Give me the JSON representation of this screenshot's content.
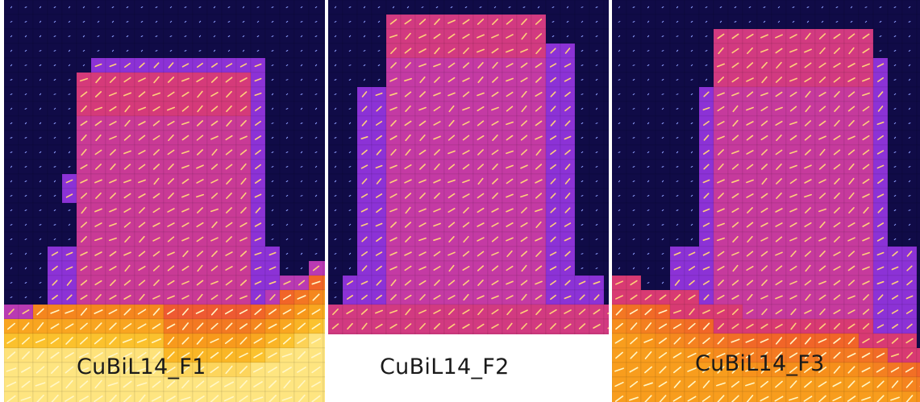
{
  "figure": {
    "panels": [
      {
        "label": "CuBiL14_F1"
      },
      {
        "label": "CuBiL14_F2"
      },
      {
        "label": "CuBiL14_F3"
      }
    ],
    "colormap": [
      "#0a0a38",
      "#2b0f8c",
      "#6a1fd0",
      "#9a3ad8",
      "#c23aa8",
      "#e23a5a",
      "#f0602a",
      "#f7941a",
      "#fbc02a",
      "#fff2a0"
    ]
  }
}
